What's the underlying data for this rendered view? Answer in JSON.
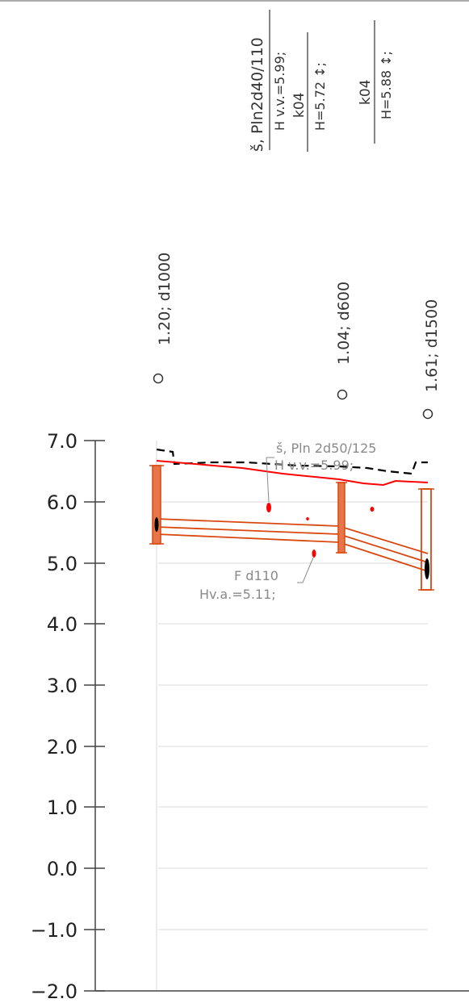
{
  "y_axis": {
    "min": -2.0,
    "max": 7.0,
    "ticks": [
      "7.0",
      "6.0",
      "5.0",
      "4.0",
      "3.0",
      "2.0",
      "1.0",
      "0.0",
      "−1.0",
      "−2.0"
    ]
  },
  "top_labels": {
    "line1": "š, Pln2d40/110",
    "line2": "H v.v.=5.99;",
    "line3": "k04",
    "line4": "H=5.72 ↕;",
    "line5": "k04",
    "line6": "H=5.88 ↕;"
  },
  "wells": [
    {
      "label": "1.20; d1000",
      "symbol": "O"
    },
    {
      "label": "1.04; d600",
      "symbol": "O"
    },
    {
      "label": "1.61; d1500",
      "symbol": "O"
    }
  ],
  "annotations": {
    "upper_line1": "š, Pln 2d50/125",
    "upper_line2": "H v.v.=5.99;",
    "lower_line1": "F d110",
    "lower_line2": "Hv.a.=5.11;"
  },
  "colors": {
    "axis": "#444444",
    "grid": "#d8d8d8",
    "ground": "#000000",
    "water": "#ff0000",
    "pipe": "#d9480f",
    "gray_text": "#8a8a8a"
  }
}
